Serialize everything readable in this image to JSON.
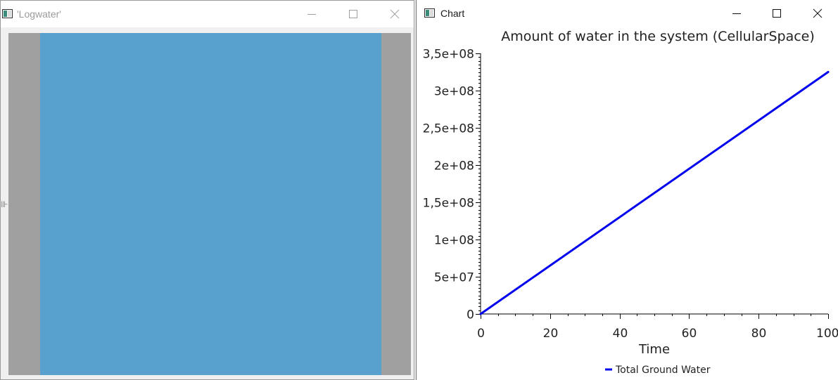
{
  "windows": {
    "logwater": {
      "title": "'Logwater'",
      "colors": {
        "water": "#58a1cf",
        "background": "#a0a0a0"
      }
    },
    "chart": {
      "title": "Chart"
    }
  },
  "icons": {
    "app": "app-window-icon",
    "minimize": "minimize-icon",
    "maximize": "maximize-icon",
    "close": "close-icon"
  },
  "chart_data": {
    "type": "line",
    "title": "Amount of water in the system (CellularSpace)",
    "xlabel": "Time",
    "ylabel": "",
    "xlim": [
      0,
      100
    ],
    "ylim": [
      0,
      350000000
    ],
    "xticks": [
      0,
      20,
      40,
      60,
      80,
      100
    ],
    "xtick_labels": [
      "0",
      "20",
      "40",
      "60",
      "80",
      "100"
    ],
    "yticks": [
      0,
      50000000,
      100000000,
      150000000,
      200000000,
      250000000,
      300000000,
      350000000
    ],
    "ytick_labels": [
      "0",
      "5e+07",
      "1e+08",
      "1,5e+08",
      "2e+08",
      "2,5e+08",
      "3e+08",
      "3,5e+08"
    ],
    "grid": false,
    "legend": "bottom",
    "series": [
      {
        "name": "Total Ground Water",
        "color": "#0000ee",
        "x": [
          0,
          100
        ],
        "values": [
          0,
          325000000
        ]
      }
    ]
  }
}
